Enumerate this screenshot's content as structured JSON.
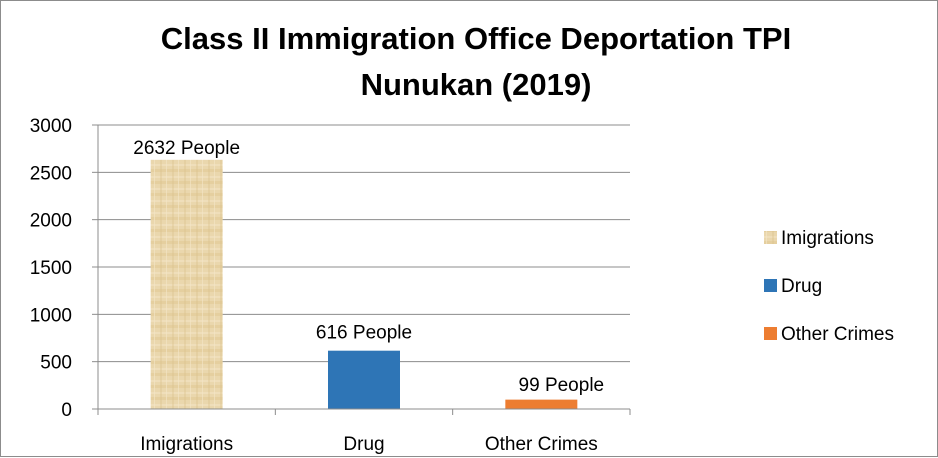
{
  "chart_data": {
    "type": "bar",
    "title_lines": [
      "Class II Immigration Office Deportation TPI",
      "Nunukan (2019)"
    ],
    "categories": [
      "Imigrations",
      "Drug",
      "Other Crimes"
    ],
    "values": [
      2632,
      616,
      99
    ],
    "data_labels": [
      "2632 People",
      "616 People",
      "99 People"
    ],
    "colors": [
      "#e6cfa0",
      "#2e75b6",
      "#ed7d31"
    ],
    "ylim": [
      0,
      3000
    ],
    "yticks": [
      "0",
      "500",
      "1000",
      "1500",
      "2000",
      "2500",
      "3000"
    ],
    "grid": true,
    "legend_position": "right",
    "legend": [
      "Imigrations",
      "Drug",
      "Other Crimes"
    ]
  }
}
